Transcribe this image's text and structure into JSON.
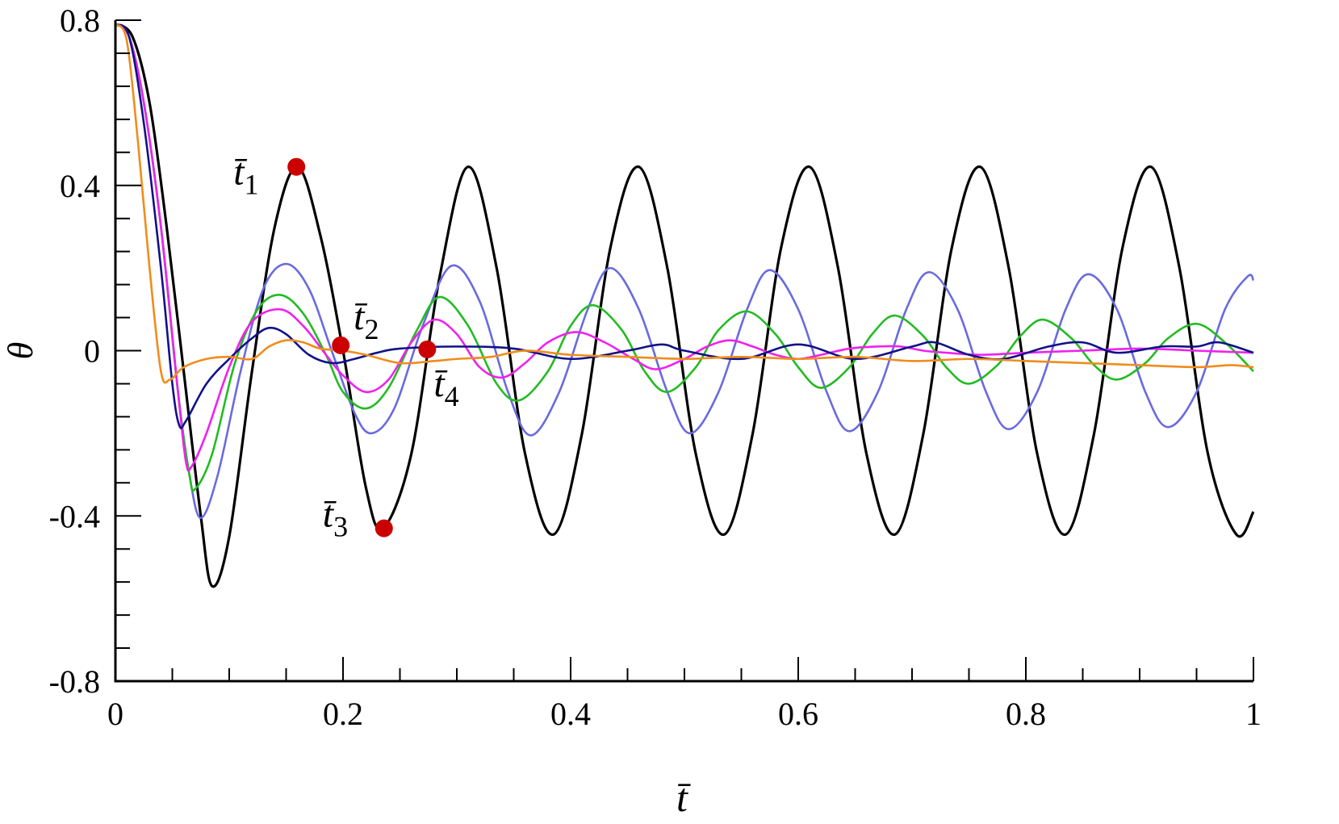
{
  "chart_data": {
    "type": "line",
    "xlabel": "t̄",
    "ylabel": "θ",
    "xlim": [
      0,
      1
    ],
    "ylim": [
      -0.8,
      0.8
    ],
    "x_ticks": [
      {
        "value": 0,
        "label": "0"
      },
      {
        "value": 0.2,
        "label": "0.2"
      },
      {
        "value": 0.4,
        "label": "0.4"
      },
      {
        "value": 0.6,
        "label": "0.6"
      },
      {
        "value": 0.8,
        "label": "0.8"
      },
      {
        "value": 1,
        "label": "1"
      }
    ],
    "y_ticks": [
      {
        "value": 0.8,
        "label": "0.8"
      },
      {
        "value": 0.4,
        "label": "0.4"
      },
      {
        "value": 0,
        "label": "0"
      },
      {
        "value": -0.4,
        "label": "-0.4"
      },
      {
        "value": -0.8,
        "label": "-0.8"
      }
    ],
    "grid": false,
    "legend": "none",
    "series": [
      {
        "color": "#000000",
        "points": [
          [
            0,
            0.79
          ],
          [
            0.015,
            0.76
          ],
          [
            0.03,
            0.6
          ],
          [
            0.045,
            0.3
          ],
          [
            0.06,
            -0.05
          ],
          [
            0.075,
            -0.4
          ],
          [
            0.085,
            -0.57
          ],
          [
            0.1,
            -0.45
          ],
          [
            0.12,
            -0.05
          ],
          [
            0.14,
            0.3
          ],
          [
            0.16,
            0.445
          ],
          [
            0.18,
            0.28
          ],
          [
            0.2,
            0.0
          ],
          [
            0.22,
            -0.33
          ],
          [
            0.235,
            -0.43
          ],
          [
            0.26,
            -0.25
          ],
          [
            0.285,
            0.18
          ],
          [
            0.31,
            0.445
          ],
          [
            0.335,
            0.2
          ],
          [
            0.36,
            -0.25
          ],
          [
            0.385,
            -0.445
          ],
          [
            0.41,
            -0.2
          ],
          [
            0.435,
            0.25
          ],
          [
            0.46,
            0.445
          ],
          [
            0.485,
            0.2
          ],
          [
            0.51,
            -0.25
          ],
          [
            0.535,
            -0.445
          ],
          [
            0.56,
            -0.2
          ],
          [
            0.585,
            0.25
          ],
          [
            0.61,
            0.445
          ],
          [
            0.635,
            0.2
          ],
          [
            0.66,
            -0.25
          ],
          [
            0.685,
            -0.445
          ],
          [
            0.71,
            -0.2
          ],
          [
            0.735,
            0.25
          ],
          [
            0.76,
            0.445
          ],
          [
            0.785,
            0.2
          ],
          [
            0.81,
            -0.25
          ],
          [
            0.835,
            -0.445
          ],
          [
            0.86,
            -0.2
          ],
          [
            0.885,
            0.25
          ],
          [
            0.91,
            0.445
          ],
          [
            0.935,
            0.2
          ],
          [
            0.96,
            -0.25
          ],
          [
            0.985,
            -0.445
          ],
          [
            1,
            -0.39
          ]
        ]
      },
      {
        "color": "#6a6ae0",
        "points": [
          [
            0,
            0.79
          ],
          [
            0.012,
            0.76
          ],
          [
            0.025,
            0.6
          ],
          [
            0.04,
            0.3
          ],
          [
            0.055,
            -0.1
          ],
          [
            0.065,
            -0.3
          ],
          [
            0.075,
            -0.405
          ],
          [
            0.09,
            -0.3
          ],
          [
            0.11,
            -0.05
          ],
          [
            0.13,
            0.15
          ],
          [
            0.15,
            0.21
          ],
          [
            0.17,
            0.15
          ],
          [
            0.19,
            0.0
          ],
          [
            0.21,
            -0.15
          ],
          [
            0.225,
            -0.2
          ],
          [
            0.245,
            -0.14
          ],
          [
            0.27,
            0.06
          ],
          [
            0.295,
            0.205
          ],
          [
            0.32,
            0.12
          ],
          [
            0.345,
            -0.1
          ],
          [
            0.365,
            -0.205
          ],
          [
            0.39,
            -0.1
          ],
          [
            0.415,
            0.1
          ],
          [
            0.435,
            0.2
          ],
          [
            0.46,
            0.1
          ],
          [
            0.485,
            -0.1
          ],
          [
            0.505,
            -0.2
          ],
          [
            0.53,
            -0.1
          ],
          [
            0.555,
            0.1
          ],
          [
            0.575,
            0.195
          ],
          [
            0.6,
            0.1
          ],
          [
            0.625,
            -0.1
          ],
          [
            0.645,
            -0.195
          ],
          [
            0.67,
            -0.1
          ],
          [
            0.695,
            0.1
          ],
          [
            0.715,
            0.19
          ],
          [
            0.74,
            0.1
          ],
          [
            0.765,
            -0.1
          ],
          [
            0.785,
            -0.19
          ],
          [
            0.81,
            -0.1
          ],
          [
            0.835,
            0.1
          ],
          [
            0.855,
            0.185
          ],
          [
            0.88,
            0.1
          ],
          [
            0.905,
            -0.1
          ],
          [
            0.925,
            -0.185
          ],
          [
            0.95,
            -0.1
          ],
          [
            0.975,
            0.1
          ],
          [
            0.995,
            0.18
          ],
          [
            1,
            0.17
          ]
        ]
      },
      {
        "color": "#22bb22",
        "points": [
          [
            0,
            0.79
          ],
          [
            0.012,
            0.76
          ],
          [
            0.025,
            0.6
          ],
          [
            0.04,
            0.3
          ],
          [
            0.055,
            -0.1
          ],
          [
            0.065,
            -0.3
          ],
          [
            0.07,
            -0.335
          ],
          [
            0.085,
            -0.25
          ],
          [
            0.105,
            -0.03
          ],
          [
            0.125,
            0.1
          ],
          [
            0.145,
            0.135
          ],
          [
            0.165,
            0.09
          ],
          [
            0.185,
            -0.01
          ],
          [
            0.2,
            -0.1
          ],
          [
            0.22,
            -0.14
          ],
          [
            0.24,
            -0.09
          ],
          [
            0.265,
            0.05
          ],
          [
            0.285,
            0.13
          ],
          [
            0.31,
            0.06
          ],
          [
            0.335,
            -0.08
          ],
          [
            0.355,
            -0.12
          ],
          [
            0.38,
            -0.05
          ],
          [
            0.4,
            0.06
          ],
          [
            0.42,
            0.11
          ],
          [
            0.445,
            0.05
          ],
          [
            0.465,
            -0.05
          ],
          [
            0.485,
            -0.1
          ],
          [
            0.51,
            -0.04
          ],
          [
            0.53,
            0.05
          ],
          [
            0.555,
            0.095
          ],
          [
            0.58,
            0.04
          ],
          [
            0.6,
            -0.04
          ],
          [
            0.62,
            -0.09
          ],
          [
            0.645,
            -0.04
          ],
          [
            0.665,
            0.04
          ],
          [
            0.685,
            0.085
          ],
          [
            0.71,
            0.035
          ],
          [
            0.73,
            -0.04
          ],
          [
            0.75,
            -0.08
          ],
          [
            0.775,
            -0.035
          ],
          [
            0.795,
            0.035
          ],
          [
            0.815,
            0.075
          ],
          [
            0.84,
            0.03
          ],
          [
            0.86,
            -0.035
          ],
          [
            0.88,
            -0.07
          ],
          [
            0.905,
            -0.03
          ],
          [
            0.925,
            0.03
          ],
          [
            0.95,
            0.065
          ],
          [
            0.975,
            0.02
          ],
          [
            1,
            -0.05
          ]
        ]
      },
      {
        "color": "#ee22ee",
        "points": [
          [
            0,
            0.79
          ],
          [
            0.012,
            0.76
          ],
          [
            0.025,
            0.6
          ],
          [
            0.04,
            0.3
          ],
          [
            0.055,
            -0.1
          ],
          [
            0.062,
            -0.27
          ],
          [
            0.067,
            -0.28
          ],
          [
            0.08,
            -0.2
          ],
          [
            0.1,
            -0.04
          ],
          [
            0.12,
            0.07
          ],
          [
            0.145,
            0.1
          ],
          [
            0.165,
            0.06
          ],
          [
            0.185,
            -0.01
          ],
          [
            0.2,
            -0.06
          ],
          [
            0.22,
            -0.1
          ],
          [
            0.24,
            -0.07
          ],
          [
            0.26,
            0.02
          ],
          [
            0.28,
            0.075
          ],
          [
            0.3,
            0.04
          ],
          [
            0.32,
            -0.04
          ],
          [
            0.34,
            -0.065
          ],
          [
            0.36,
            -0.03
          ],
          [
            0.38,
            0.02
          ],
          [
            0.405,
            0.045
          ],
          [
            0.43,
            0.02
          ],
          [
            0.455,
            -0.02
          ],
          [
            0.475,
            -0.045
          ],
          [
            0.5,
            -0.02
          ],
          [
            0.52,
            0.01
          ],
          [
            0.54,
            0.025
          ],
          [
            0.56,
            0.01
          ],
          [
            0.58,
            -0.01
          ],
          [
            0.6,
            -0.02
          ],
          [
            0.62,
            -0.01
          ],
          [
            0.645,
            0.005
          ],
          [
            0.67,
            0.01
          ],
          [
            0.69,
            0.01
          ],
          [
            0.71,
            0.0
          ],
          [
            0.73,
            -0.005
          ],
          [
            0.76,
            -0.01
          ],
          [
            0.8,
            -0.005
          ],
          [
            0.85,
            0.0
          ],
          [
            0.9,
            0.005
          ],
          [
            0.95,
            0.0
          ],
          [
            1,
            -0.005
          ]
        ]
      },
      {
        "color": "#111188",
        "points": [
          [
            0,
            0.79
          ],
          [
            0.012,
            0.76
          ],
          [
            0.025,
            0.55
          ],
          [
            0.04,
            0.2
          ],
          [
            0.05,
            -0.08
          ],
          [
            0.056,
            -0.18
          ],
          [
            0.062,
            -0.17
          ],
          [
            0.08,
            -0.08
          ],
          [
            0.1,
            -0.02
          ],
          [
            0.12,
            0.03
          ],
          [
            0.135,
            0.055
          ],
          [
            0.15,
            0.04
          ],
          [
            0.17,
            -0.01
          ],
          [
            0.19,
            -0.03
          ],
          [
            0.21,
            -0.02
          ],
          [
            0.23,
            -0.005
          ],
          [
            0.25,
            0.005
          ],
          [
            0.3,
            0.01
          ],
          [
            0.35,
            0.005
          ],
          [
            0.4,
            -0.02
          ],
          [
            0.45,
            0.0
          ],
          [
            0.48,
            0.015
          ],
          [
            0.5,
            0.0
          ],
          [
            0.55,
            -0.02
          ],
          [
            0.6,
            0.015
          ],
          [
            0.65,
            -0.02
          ],
          [
            0.7,
            0.01
          ],
          [
            0.72,
            0.02
          ],
          [
            0.75,
            -0.01
          ],
          [
            0.78,
            -0.02
          ],
          [
            0.82,
            0.01
          ],
          [
            0.85,
            0.02
          ],
          [
            0.88,
            -0.005
          ],
          [
            0.92,
            0.01
          ],
          [
            0.95,
            0.01
          ],
          [
            0.97,
            0.02
          ],
          [
            1,
            -0.005
          ]
        ]
      },
      {
        "color": "#f08c1c",
        "points": [
          [
            0,
            0.79
          ],
          [
            0.01,
            0.75
          ],
          [
            0.02,
            0.5
          ],
          [
            0.03,
            0.2
          ],
          [
            0.04,
            -0.05
          ],
          [
            0.048,
            -0.07
          ],
          [
            0.06,
            -0.04
          ],
          [
            0.08,
            -0.02
          ],
          [
            0.1,
            -0.015
          ],
          [
            0.12,
            -0.02
          ],
          [
            0.135,
            0.01
          ],
          [
            0.15,
            0.025
          ],
          [
            0.165,
            0.02
          ],
          [
            0.18,
            0.005
          ],
          [
            0.2,
            0.0
          ],
          [
            0.22,
            -0.01
          ],
          [
            0.25,
            -0.03
          ],
          [
            0.28,
            -0.025
          ],
          [
            0.3,
            -0.02
          ],
          [
            0.33,
            -0.015
          ],
          [
            0.36,
            0.0
          ],
          [
            0.4,
            -0.01
          ],
          [
            0.45,
            -0.015
          ],
          [
            0.5,
            -0.02
          ],
          [
            0.55,
            -0.015
          ],
          [
            0.6,
            -0.02
          ],
          [
            0.65,
            -0.015
          ],
          [
            0.7,
            -0.025
          ],
          [
            0.75,
            -0.02
          ],
          [
            0.8,
            -0.025
          ],
          [
            0.85,
            -0.03
          ],
          [
            0.9,
            -0.035
          ],
          [
            0.95,
            -0.04
          ],
          [
            0.98,
            -0.035
          ],
          [
            1,
            -0.04
          ]
        ]
      }
    ],
    "markers": [
      {
        "x": 0.159,
        "y": 0.445,
        "label_base": "t̄",
        "label_sub": "1",
        "color": "#cc0000"
      },
      {
        "x": 0.198,
        "y": 0.013,
        "label_base": "t̄",
        "label_sub": "2",
        "color": "#cc0000"
      },
      {
        "x": 0.236,
        "y": -0.43,
        "label_base": "t̄",
        "label_sub": "3",
        "color": "#cc0000"
      },
      {
        "x": 0.274,
        "y": 0.003,
        "label_base": "t̄",
        "label_sub": "4",
        "color": "#cc0000"
      }
    ]
  }
}
